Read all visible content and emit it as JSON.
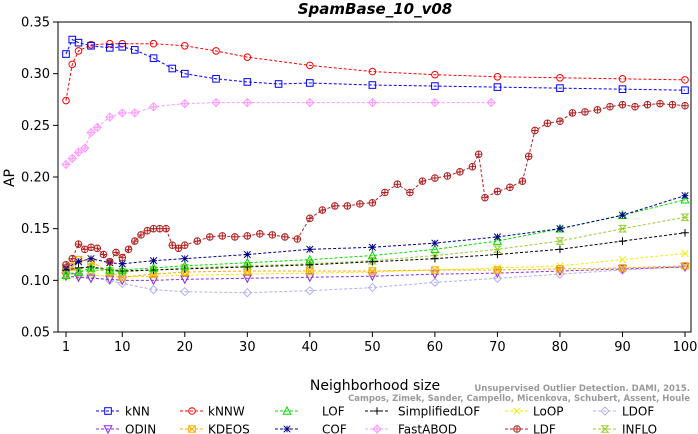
{
  "chart_data": {
    "type": "line",
    "title": "SpamBase_10_v08",
    "xlabel": "Neighborhood size",
    "ylabel": "AP",
    "xlim": [
      0,
      100
    ],
    "ylim": [
      0.05,
      0.35
    ],
    "xticks": [
      1,
      10,
      20,
      30,
      40,
      50,
      60,
      70,
      80,
      90,
      100
    ],
    "yticks": [
      0.05,
      0.1,
      0.15,
      0.2,
      0.25,
      0.3,
      0.35
    ],
    "ytick_labels": [
      "0.05",
      "0.10",
      "0.15",
      "0.20",
      "0.25",
      "0.30",
      "0.35"
    ],
    "grid": false,
    "legend_position": "bottom",
    "credit_lines": [
      "Unsupervised Outlier Detection. DAMI, 2015.",
      "Campos, Zimek, Sander, Campello, Micenkova, Schubert, Assent, Houle"
    ],
    "series": [
      {
        "name": "kNN",
        "color": "#0000ff",
        "marker": "square",
        "x": [
          1,
          2,
          3,
          5,
          8,
          10,
          12,
          15,
          18,
          20,
          25,
          30,
          35,
          40,
          50,
          60,
          70,
          80,
          90,
          100
        ],
        "y": [
          0.319,
          0.333,
          0.33,
          0.327,
          0.325,
          0.326,
          0.323,
          0.315,
          0.305,
          0.3,
          0.295,
          0.292,
          0.29,
          0.291,
          0.289,
          0.288,
          0.287,
          0.286,
          0.285,
          0.284
        ]
      },
      {
        "name": "kNNW",
        "color": "#ff0000",
        "marker": "circle",
        "x": [
          1,
          2,
          3,
          5,
          8,
          10,
          15,
          20,
          25,
          30,
          40,
          50,
          60,
          70,
          80,
          90,
          100
        ],
        "y": [
          0.274,
          0.309,
          0.322,
          0.328,
          0.329,
          0.329,
          0.329,
          0.327,
          0.322,
          0.316,
          0.308,
          0.302,
          0.299,
          0.297,
          0.296,
          0.295,
          0.294
        ]
      },
      {
        "name": "LOF",
        "color": "#00dd00",
        "marker": "triangle",
        "x": [
          1,
          3,
          5,
          8,
          10,
          15,
          20,
          30,
          40,
          50,
          60,
          70,
          80,
          90,
          100
        ],
        "y": [
          0.105,
          0.108,
          0.112,
          0.11,
          0.11,
          0.112,
          0.114,
          0.117,
          0.12,
          0.124,
          0.13,
          0.138,
          0.15,
          0.163,
          0.178
        ]
      },
      {
        "name": "SimplifiedLOF",
        "color": "#000000",
        "marker": "plus",
        "x": [
          1,
          3,
          5,
          8,
          10,
          15,
          20,
          30,
          40,
          50,
          60,
          70,
          80,
          90,
          100
        ],
        "y": [
          0.11,
          0.112,
          0.113,
          0.11,
          0.109,
          0.11,
          0.111,
          0.113,
          0.115,
          0.118,
          0.121,
          0.125,
          0.13,
          0.138,
          0.146
        ]
      },
      {
        "name": "LoOP",
        "color": "#eeee00",
        "marker": "x",
        "x": [
          1,
          3,
          5,
          8,
          10,
          15,
          20,
          30,
          40,
          50,
          60,
          70,
          80,
          90,
          100
        ],
        "y": [
          0.103,
          0.104,
          0.105,
          0.104,
          0.103,
          0.104,
          0.105,
          0.106,
          0.107,
          0.108,
          0.11,
          0.112,
          0.114,
          0.12,
          0.126
        ]
      },
      {
        "name": "LDOF",
        "color": "#b0b0f0",
        "marker": "diamond",
        "x": [
          1,
          3,
          5,
          8,
          10,
          15,
          20,
          30,
          40,
          50,
          60,
          70,
          80,
          90,
          100
        ],
        "y": [
          0.107,
          0.105,
          0.103,
          0.1,
          0.097,
          0.091,
          0.089,
          0.088,
          0.09,
          0.093,
          0.098,
          0.102,
          0.106,
          0.11,
          0.113
        ]
      },
      {
        "name": "ODIN",
        "color": "#8a2be2",
        "marker": "triangle-down",
        "x": [
          1,
          3,
          5,
          8,
          10,
          15,
          20,
          30,
          40,
          50,
          60,
          70,
          80,
          90,
          100
        ],
        "y": [
          0.104,
          0.103,
          0.102,
          0.101,
          0.1,
          0.1,
          0.101,
          0.102,
          0.103,
          0.104,
          0.106,
          0.107,
          0.109,
          0.111,
          0.113
        ]
      },
      {
        "name": "KDEOS",
        "color": "#ffaa00",
        "marker": "square-x",
        "x": [
          1,
          2,
          3,
          5,
          8,
          10,
          15,
          20,
          30,
          40,
          50,
          60,
          70,
          80,
          90,
          100
        ],
        "y": [
          0.11,
          0.113,
          0.12,
          0.118,
          0.108,
          0.103,
          0.106,
          0.108,
          0.109,
          0.109,
          0.109,
          0.11,
          0.11,
          0.111,
          0.112,
          0.114
        ]
      },
      {
        "name": "COF",
        "color": "#00008b",
        "marker": "star",
        "x": [
          1,
          3,
          5,
          8,
          10,
          15,
          20,
          30,
          40,
          50,
          60,
          70,
          80,
          90,
          100
        ],
        "y": [
          0.112,
          0.118,
          0.121,
          0.117,
          0.116,
          0.119,
          0.121,
          0.125,
          0.13,
          0.132,
          0.136,
          0.142,
          0.15,
          0.163,
          0.182
        ]
      },
      {
        "name": "FastABOD",
        "color": "#ff99ff",
        "marker": "diamond-plus",
        "x": [
          1,
          2,
          3,
          4,
          5,
          6,
          8,
          10,
          12,
          15,
          20,
          25,
          30,
          40,
          50,
          60,
          69
        ],
        "y": [
          0.212,
          0.218,
          0.224,
          0.228,
          0.243,
          0.248,
          0.258,
          0.262,
          0.262,
          0.268,
          0.271,
          0.272,
          0.272,
          0.272,
          0.272,
          0.272,
          0.272
        ]
      },
      {
        "name": "LDF",
        "color": "#b22222",
        "marker": "circle-plus",
        "x": [
          1,
          2,
          3,
          4,
          5,
          6,
          7,
          8,
          9,
          10,
          11,
          12,
          13,
          14,
          15,
          16,
          17,
          18,
          19,
          20,
          22,
          24,
          26,
          28,
          30,
          32,
          34,
          36,
          38,
          40,
          42,
          44,
          46,
          48,
          50,
          52,
          54,
          56,
          58,
          60,
          62,
          64,
          66,
          67,
          68,
          70,
          72,
          74,
          75,
          76,
          78,
          80,
          82,
          84,
          86,
          88,
          90,
          92,
          94,
          96,
          98,
          100
        ],
        "y": [
          0.115,
          0.121,
          0.135,
          0.13,
          0.132,
          0.131,
          0.125,
          0.118,
          0.127,
          0.122,
          0.13,
          0.138,
          0.144,
          0.148,
          0.15,
          0.15,
          0.15,
          0.134,
          0.131,
          0.134,
          0.138,
          0.142,
          0.143,
          0.142,
          0.143,
          0.145,
          0.144,
          0.142,
          0.14,
          0.16,
          0.168,
          0.172,
          0.172,
          0.174,
          0.175,
          0.185,
          0.193,
          0.185,
          0.196,
          0.199,
          0.201,
          0.205,
          0.21,
          0.222,
          0.18,
          0.186,
          0.19,
          0.196,
          0.22,
          0.245,
          0.252,
          0.254,
          0.262,
          0.263,
          0.265,
          0.268,
          0.27,
          0.268,
          0.27,
          0.271,
          0.27,
          0.269
        ]
      },
      {
        "name": "INFLO",
        "color": "#99cc33",
        "marker": "hourglass",
        "x": [
          1,
          3,
          5,
          8,
          10,
          15,
          20,
          30,
          40,
          50,
          60,
          70,
          80,
          90,
          100
        ],
        "y": [
          0.106,
          0.108,
          0.11,
          0.109,
          0.108,
          0.11,
          0.112,
          0.114,
          0.116,
          0.119,
          0.124,
          0.13,
          0.138,
          0.15,
          0.161
        ]
      }
    ]
  }
}
